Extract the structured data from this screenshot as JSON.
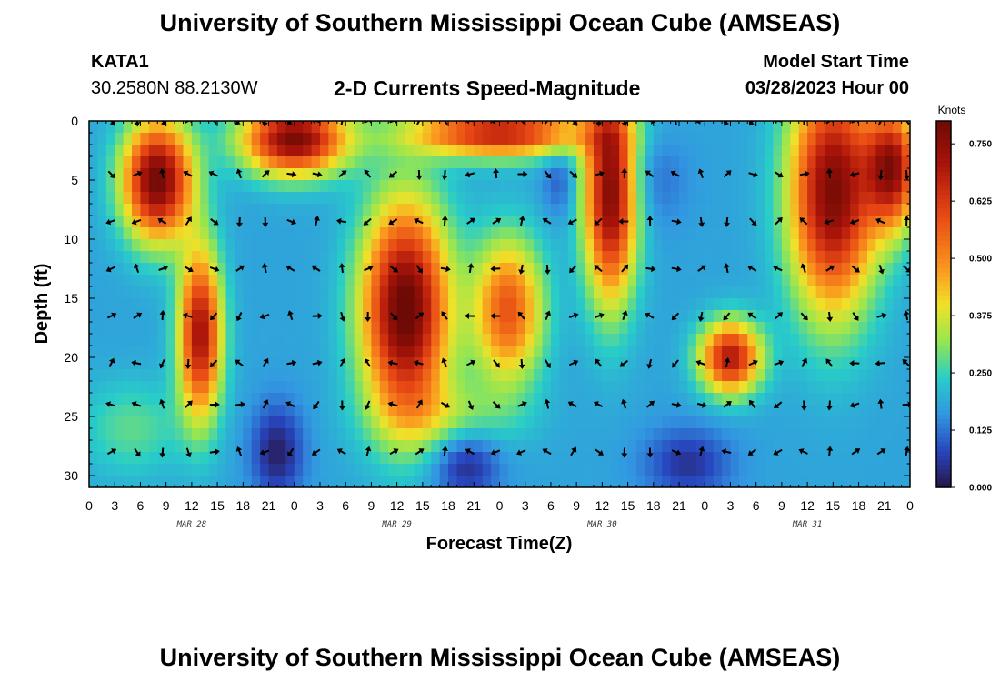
{
  "header": {
    "title": "University of Southern Mississippi Ocean Cube (AMSEAS)",
    "station": "KATA1",
    "coords": "30.2580N  88.2130W",
    "subtitle": "2-D Currents Speed-Magnitude",
    "model_start_label": "Model Start Time",
    "model_start_value": "03/28/2023 Hour 00"
  },
  "footer": {
    "title": "University of Southern Mississippi Ocean Cube (AMSEAS)"
  },
  "colors": {
    "vector": "#000000",
    "frame": "#000000"
  },
  "chart_data": {
    "type": "heatmap",
    "title": "2-D Currents Speed-Magnitude",
    "xlabel": "Forecast Time(Z)",
    "ylabel": "Depth (ft)",
    "x_range_hours": [
      0,
      96
    ],
    "y_range_ft": [
      0,
      31
    ],
    "y_inverted": true,
    "x_ticks": [
      "0",
      "3",
      "6",
      "9",
      "12",
      "15",
      "18",
      "21",
      "0",
      "3",
      "6",
      "9",
      "12",
      "15",
      "18",
      "21",
      "0",
      "3",
      "6",
      "9",
      "12",
      "15",
      "18",
      "21",
      "0",
      "3",
      "6",
      "9",
      "12",
      "15",
      "18",
      "21",
      "0"
    ],
    "y_ticks": [
      0,
      5,
      10,
      15,
      20,
      25,
      30
    ],
    "date_labels": [
      {
        "text": "MAR 28",
        "hour": 12
      },
      {
        "text": "MAR 29",
        "hour": 36
      },
      {
        "text": "MAR 30",
        "hour": 60
      },
      {
        "text": "MAR 31",
        "hour": 84
      }
    ],
    "colorbar": {
      "title": "Knots",
      "min": 0.0,
      "max": 0.8,
      "ticks": [
        "0.000",
        "0.125",
        "0.250",
        "0.375",
        "0.500",
        "0.625",
        "0.750"
      ],
      "tick_values": [
        0.0,
        0.125,
        0.25,
        0.375,
        0.5,
        0.625,
        0.75
      ]
    },
    "speed_features": [
      {
        "hour": 8,
        "depth": 5,
        "dh": 4,
        "dd": 5,
        "speed": 0.8
      },
      {
        "hour": 13,
        "depth": 18,
        "dh": 2.5,
        "dd": 7,
        "speed": 0.72
      },
      {
        "hour": 24,
        "depth": 1.5,
        "dh": 6,
        "dd": 3,
        "speed": 0.78
      },
      {
        "hour": 37,
        "depth": 16,
        "dh": 5,
        "dd": 9,
        "speed": 0.82
      },
      {
        "hour": 49,
        "depth": 16,
        "dh": 4,
        "dd": 6,
        "speed": 0.58
      },
      {
        "hour": 48,
        "depth": 1,
        "dh": 10,
        "dd": 2,
        "speed": 0.68
      },
      {
        "hour": 61,
        "depth": 6,
        "dh": 3,
        "dd": 9,
        "speed": 0.78
      },
      {
        "hour": 75,
        "depth": 20,
        "dh": 3.5,
        "dd": 3,
        "speed": 0.7
      },
      {
        "hour": 87,
        "depth": 6,
        "dh": 5,
        "dd": 10,
        "speed": 0.78
      },
      {
        "hour": 94,
        "depth": 4,
        "dh": 3,
        "dd": 5,
        "speed": 0.7
      },
      {
        "hour": 5,
        "depth": 26,
        "dh": 6,
        "dd": 4,
        "speed": 0.28
      },
      {
        "hour": 42,
        "depth": 25,
        "dh": 8,
        "dd": 3,
        "speed": 0.3
      },
      {
        "hour": 55,
        "depth": 5,
        "dh": 2,
        "dd": 3,
        "speed": 0.1
      },
      {
        "hour": 66,
        "depth": 5,
        "dh": 4,
        "dd": 4,
        "speed": 0.12
      },
      {
        "hour": 22,
        "depth": 28,
        "dh": 3,
        "dd": 4,
        "speed": 0.02
      },
      {
        "hour": 44,
        "depth": 29,
        "dh": 4,
        "dd": 3,
        "speed": 0.03
      },
      {
        "hour": 70,
        "depth": 29,
        "dh": 5,
        "dd": 3,
        "speed": 0.05
      }
    ],
    "vector_rows_depth_ft": [
      0,
      4.5,
      8.5,
      12.5,
      16.5,
      20.5,
      24,
      28
    ]
  }
}
